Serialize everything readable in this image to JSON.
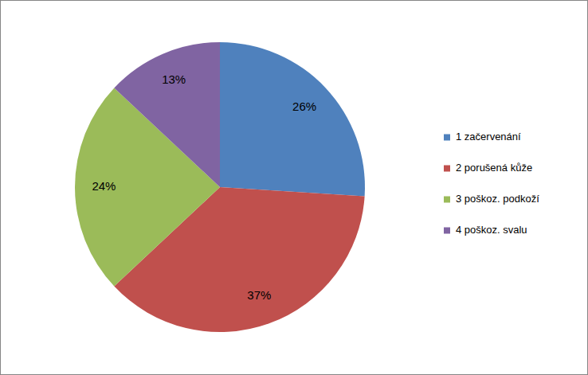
{
  "chart_data": {
    "type": "pie",
    "categories": [
      "1 začervenání",
      "2 porušená kůže",
      "3 poškoz. podkoží",
      "4 poškoz. svalu"
    ],
    "values": [
      26,
      37,
      24,
      13
    ],
    "value_labels": [
      "26%",
      "37%",
      "24%",
      "13%"
    ],
    "colors": [
      "#4f81bd",
      "#c0504d",
      "#9bbb59",
      "#8064a2"
    ],
    "data_labels": true,
    "legend": "right"
  }
}
